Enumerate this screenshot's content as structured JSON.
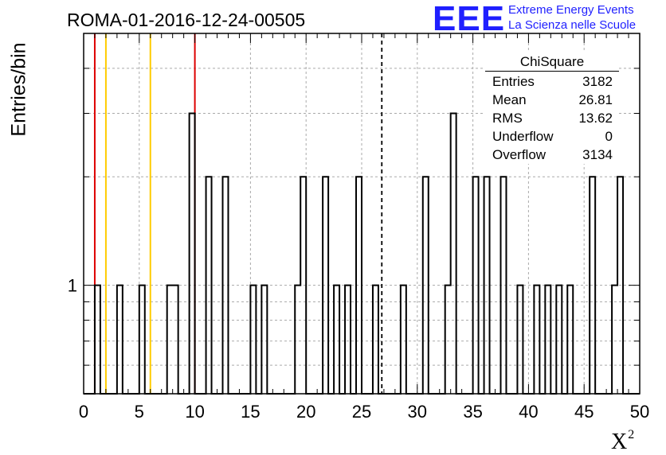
{
  "header": {
    "run_title": "ROMA-01-2016-12-24-00505",
    "logo_text": "EEE",
    "logo_line1": "Extreme Energy Events",
    "logo_line2": "La Scienza nelle Scuole"
  },
  "stats": {
    "title": "ChiSquare",
    "rows": [
      {
        "label": "Entries",
        "value": "3182"
      },
      {
        "label": "Mean",
        "value": "26.81"
      },
      {
        "label": "RMS",
        "value": "13.62"
      },
      {
        "label": "Underflow",
        "value": "0"
      },
      {
        "label": "Overflow",
        "value": "3134"
      }
    ]
  },
  "colors": {
    "red": "#dd0000",
    "yellow": "#ffcc00",
    "histogram": "#000000",
    "grid": "#aaaaaa",
    "logo": "#1f1fff"
  },
  "chart_data": {
    "type": "histogram",
    "title": "ROMA-01-2016-12-24-00505",
    "xlabel": "X",
    "xlabel_superscript": "2",
    "ylabel": "Entries/bin",
    "xlim": [
      0,
      50
    ],
    "ylim": [
      0.5,
      5
    ],
    "log_y": true,
    "bin_width": 0.5,
    "grid": true,
    "x_ticks": [
      0,
      5,
      10,
      15,
      20,
      25,
      30,
      35,
      40,
      45,
      50
    ],
    "y_tick_labels": [
      {
        "value": 1,
        "label": "1"
      }
    ],
    "bins": [
      {
        "x": 1.0,
        "count": 1
      },
      {
        "x": 3.0,
        "count": 1
      },
      {
        "x": 5.0,
        "count": 1
      },
      {
        "x": 7.5,
        "count": 1
      },
      {
        "x": 8.0,
        "count": 1
      },
      {
        "x": 9.5,
        "count": 3
      },
      {
        "x": 11.0,
        "count": 2
      },
      {
        "x": 12.5,
        "count": 2
      },
      {
        "x": 15.0,
        "count": 1
      },
      {
        "x": 16.0,
        "count": 1
      },
      {
        "x": 19.0,
        "count": 1
      },
      {
        "x": 19.5,
        "count": 2
      },
      {
        "x": 21.5,
        "count": 2
      },
      {
        "x": 22.5,
        "count": 1
      },
      {
        "x": 23.5,
        "count": 1
      },
      {
        "x": 24.5,
        "count": 2
      },
      {
        "x": 26.0,
        "count": 1
      },
      {
        "x": 28.5,
        "count": 1
      },
      {
        "x": 30.5,
        "count": 2
      },
      {
        "x": 32.5,
        "count": 1
      },
      {
        "x": 33.0,
        "count": 3
      },
      {
        "x": 35.0,
        "count": 2
      },
      {
        "x": 36.0,
        "count": 2
      },
      {
        "x": 37.5,
        "count": 2
      },
      {
        "x": 39.0,
        "count": 1
      },
      {
        "x": 40.5,
        "count": 1
      },
      {
        "x": 41.5,
        "count": 1
      },
      {
        "x": 42.5,
        "count": 1
      },
      {
        "x": 43.5,
        "count": 1
      },
      {
        "x": 45.5,
        "count": 2
      },
      {
        "x": 47.5,
        "count": 1
      },
      {
        "x": 48.0,
        "count": 2
      }
    ],
    "vertical_lines": [
      {
        "x": 1,
        "color": "red",
        "style": "solid"
      },
      {
        "x": 2,
        "color": "yellow",
        "style": "solid"
      },
      {
        "x": 6,
        "color": "yellow",
        "style": "solid"
      },
      {
        "x": 10,
        "color": "red",
        "style": "solid"
      },
      {
        "x": 26.81,
        "color": "black",
        "style": "dashed"
      }
    ]
  }
}
